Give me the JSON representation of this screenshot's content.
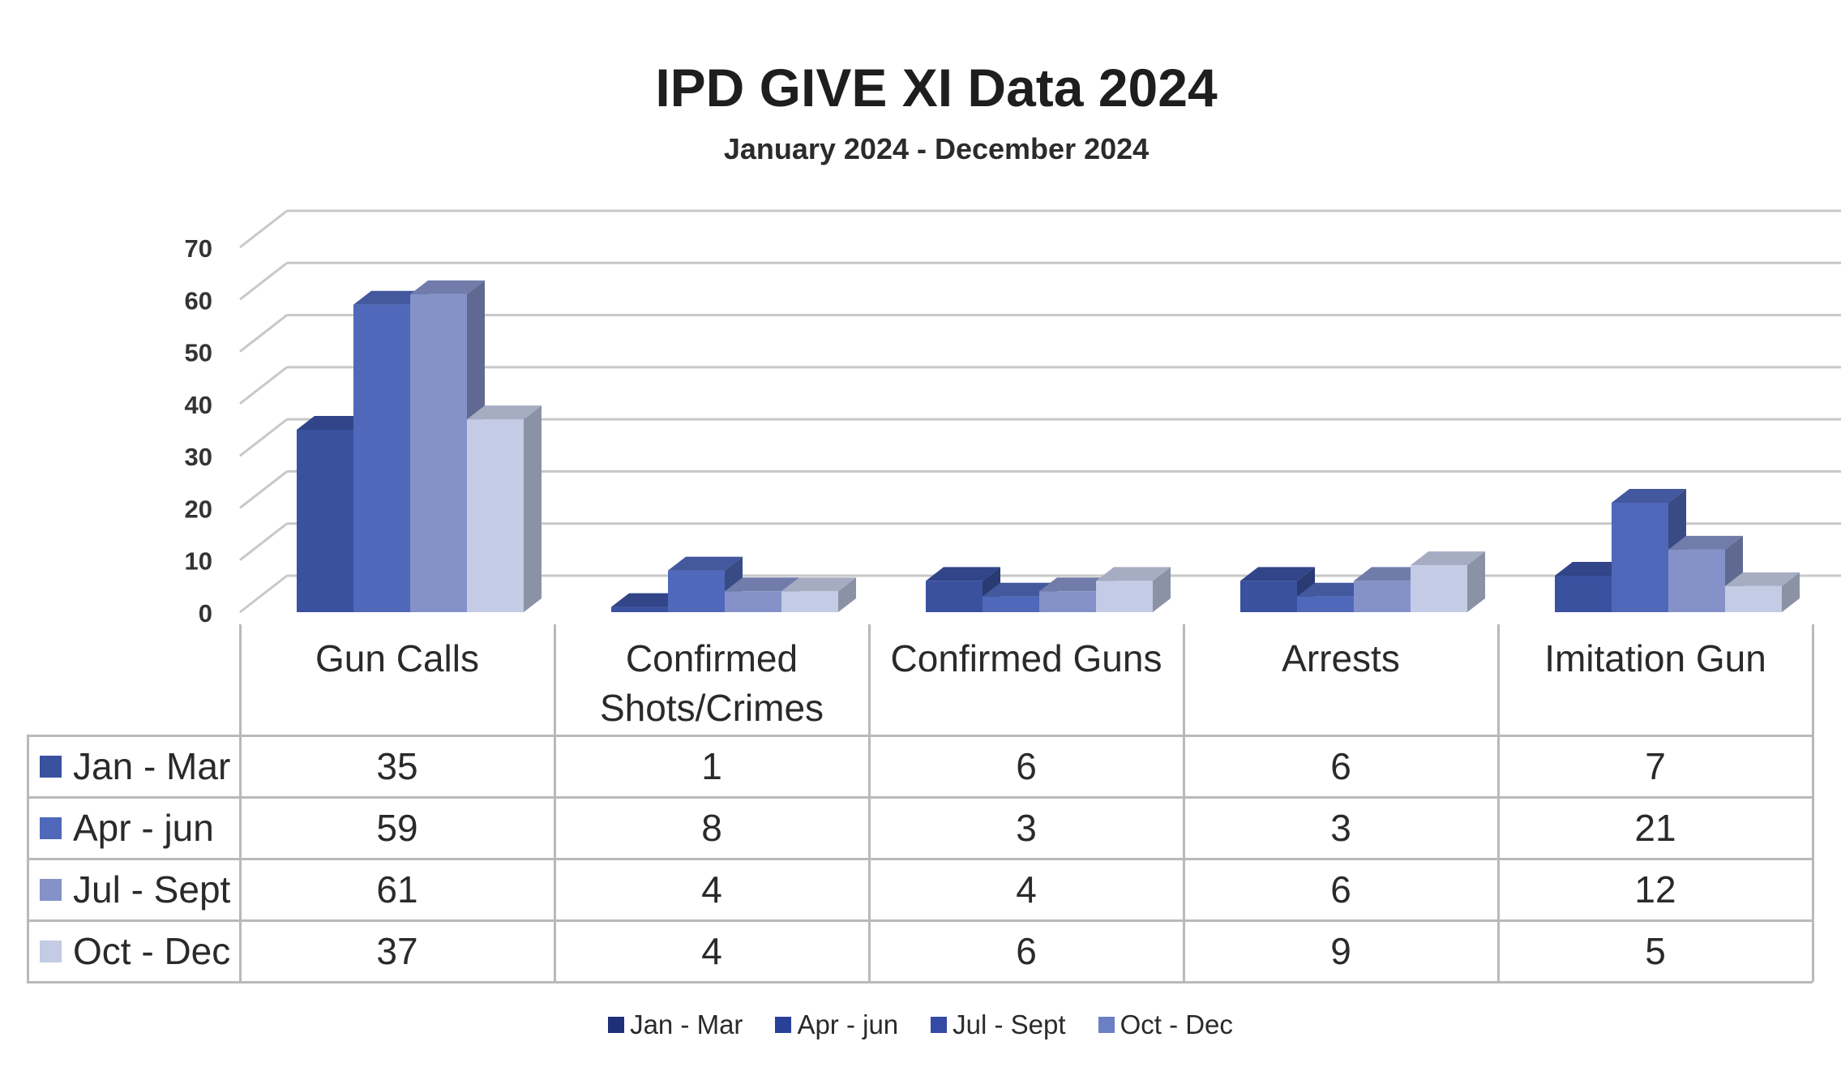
{
  "chart_data": {
    "type": "bar",
    "title": "IPD GIVE XI Data 2024",
    "subtitle": "January 2024 - December 2024",
    "categories": [
      "Gun Calls",
      "Confirmed Shots/Crimes",
      "Confirmed Guns",
      "Arrests",
      "Imitation Gun"
    ],
    "series": [
      {
        "name": "Jan - Mar",
        "values": [
          35,
          1,
          6,
          6,
          7
        ],
        "color": "#3a51a0"
      },
      {
        "name": "Apr - jun",
        "values": [
          59,
          8,
          3,
          3,
          21
        ],
        "color": "#4f68b9"
      },
      {
        "name": "Jul - Sept",
        "values": [
          61,
          4,
          4,
          6,
          12
        ],
        "color": "#8592c9"
      },
      {
        "name": "Oct - Dec",
        "values": [
          37,
          4,
          6,
          9,
          5
        ],
        "color": "#c3cbe5"
      }
    ],
    "y_ticks": [
      "0",
      "10",
      "20",
      "30",
      "40",
      "50",
      "60",
      "70"
    ],
    "ylim": [
      0,
      70
    ],
    "grid": true,
    "bars_3d": true,
    "data_table": true,
    "legend": {
      "position": "bottom",
      "entries": [
        {
          "label": "Jan - Mar",
          "color": "#1f2f78"
        },
        {
          "label": "Apr - jun",
          "color": "#2a3f98"
        },
        {
          "label": "Jul - Sept",
          "color": "#3549a6"
        },
        {
          "label": "Oct - Dec",
          "color": "#6b7fc4"
        }
      ]
    }
  }
}
